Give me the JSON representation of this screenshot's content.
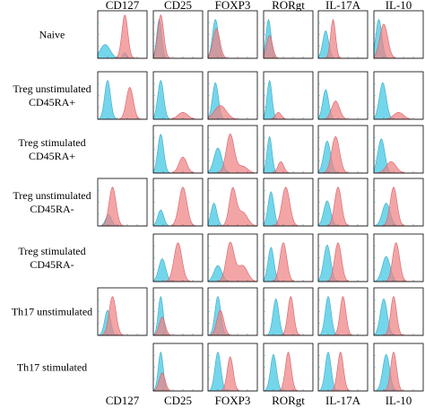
{
  "columns": [
    "CD127",
    "CD25",
    "FOXP3",
    "RORgt",
    "IL-17A",
    "IL-10"
  ],
  "rows": [
    [
      "Naive"
    ],
    [
      "Treg unstimulated",
      "CD45RA+"
    ],
    [
      "Treg stimulated",
      "CD45RA+"
    ],
    [
      "Treg unstimulated",
      "CD45RA-"
    ],
    [
      "Treg stimulated",
      "CD45RA-"
    ],
    [
      "Th17 unstimulated"
    ],
    [
      "Th17 stimulated"
    ]
  ],
  "colors": {
    "control_fill": "#5ccfe6",
    "control_stroke": "#3aa9c8",
    "stained_fill": "#ef8283",
    "stained_stroke": "#d8606a",
    "frame": "#000000"
  },
  "chart_data": {
    "type": "area",
    "kind": "flow-cytometry histogram grid",
    "present": [
      [
        1,
        1,
        1,
        1,
        1,
        1
      ],
      [
        1,
        1,
        1,
        1,
        1,
        1
      ],
      [
        0,
        1,
        1,
        1,
        1,
        1
      ],
      [
        1,
        1,
        1,
        1,
        1,
        1
      ],
      [
        0,
        1,
        1,
        1,
        1,
        1
      ],
      [
        1,
        1,
        1,
        1,
        1,
        1
      ],
      [
        0,
        1,
        1,
        1,
        1,
        1
      ]
    ],
    "histograms": [
      [
        {
          "blue": [
            [
              0.15,
              0.3,
              0.1
            ],
            [
              0.55,
              0.12,
              0.04
            ]
          ],
          "red": [
            [
              0.55,
              0.95,
              0.06
            ]
          ]
        },
        {
          "blue": [
            [
              0.12,
              0.85,
              0.05
            ]
          ],
          "red": [
            [
              0.15,
              0.95,
              0.06
            ]
          ]
        },
        {
          "blue": [
            [
              0.15,
              0.85,
              0.06
            ]
          ],
          "red": [
            [
              0.17,
              0.65,
              0.07
            ]
          ]
        },
        {
          "blue": [
            [
              0.1,
              0.85,
              0.05
            ]
          ],
          "red": [
            [
              0.12,
              0.5,
              0.06
            ]
          ]
        },
        {
          "blue": [
            [
              0.15,
              0.6,
              0.06
            ]
          ],
          "red": [
            [
              0.3,
              0.85,
              0.05
            ]
          ]
        },
        {
          "blue": [
            [
              0.1,
              0.85,
              0.06
            ]
          ],
          "red": [
            [
              0.2,
              0.75,
              0.08
            ]
          ]
        }
      ],
      [
        {
          "blue": [
            [
              0.2,
              0.85,
              0.06
            ]
          ],
          "red": [
            [
              0.65,
              0.7,
              0.07
            ]
          ]
        },
        {
          "blue": [
            [
              0.15,
              0.85,
              0.06
            ]
          ],
          "red": [
            [
              0.6,
              0.15,
              0.1
            ]
          ]
        },
        {
          "blue": [
            [
              0.15,
              0.8,
              0.06
            ]
          ],
          "red": [
            [
              0.25,
              0.3,
              0.12
            ]
          ]
        },
        {
          "blue": [
            [
              0.12,
              0.85,
              0.05
            ]
          ],
          "red": [
            [
              0.3,
              0.15,
              0.06
            ]
          ]
        },
        {
          "blue": [
            [
              0.15,
              0.65,
              0.06
            ]
          ],
          "red": [
            [
              0.35,
              0.4,
              0.08
            ]
          ]
        },
        {
          "blue": [
            [
              0.18,
              0.8,
              0.07
            ]
          ],
          "red": [
            [
              0.5,
              0.15,
              0.1
            ]
          ]
        }
      ],
      [
        null,
        {
          "blue": [
            [
              0.15,
              0.85,
              0.06
            ]
          ],
          "red": [
            [
              0.6,
              0.35,
              0.08
            ]
          ]
        },
        {
          "blue": [
            [
              0.2,
              0.55,
              0.08
            ]
          ],
          "red": [
            [
              0.45,
              0.85,
              0.08
            ],
            [
              0.7,
              0.15,
              0.1
            ]
          ]
        },
        {
          "blue": [
            [
              0.12,
              0.8,
              0.05
            ]
          ],
          "red": [
            [
              0.35,
              0.25,
              0.06
            ]
          ]
        },
        {
          "blue": [
            [
              0.18,
              0.7,
              0.07
            ]
          ],
          "red": [
            [
              0.35,
              0.8,
              0.08
            ]
          ]
        },
        {
          "blue": [
            [
              0.15,
              0.75,
              0.07
            ]
          ],
          "red": [
            [
              0.35,
              0.25,
              0.1
            ]
          ]
        }
      ],
      [
        {
          "blue": [
            [
              0.22,
              0.25,
              0.06
            ]
          ],
          "red": [
            [
              0.3,
              0.85,
              0.07
            ]
          ]
        },
        {
          "blue": [
            [
              0.15,
              0.35,
              0.06
            ]
          ],
          "red": [
            [
              0.6,
              0.85,
              0.08
            ]
          ]
        },
        {
          "blue": [
            [
              0.12,
              0.5,
              0.06
            ]
          ],
          "red": [
            [
              0.5,
              0.8,
              0.07
            ],
            [
              0.7,
              0.3,
              0.1
            ]
          ]
        },
        {
          "blue": [
            [
              0.15,
              0.75,
              0.06
            ]
          ],
          "red": [
            [
              0.45,
              0.85,
              0.08
            ]
          ]
        },
        {
          "blue": [
            [
              0.18,
              0.55,
              0.07
            ]
          ],
          "red": [
            [
              0.4,
              0.85,
              0.07
            ]
          ]
        },
        {
          "blue": [
            [
              0.25,
              0.5,
              0.08
            ]
          ],
          "red": [
            [
              0.4,
              0.85,
              0.07
            ]
          ]
        }
      ],
      [
        null,
        {
          "blue": [
            [
              0.18,
              0.5,
              0.07
            ]
          ],
          "red": [
            [
              0.5,
              0.85,
              0.08
            ]
          ]
        },
        {
          "blue": [
            [
              0.2,
              0.35,
              0.08
            ]
          ],
          "red": [
            [
              0.45,
              0.85,
              0.08
            ],
            [
              0.7,
              0.35,
              0.1
            ]
          ]
        },
        {
          "blue": [
            [
              0.15,
              0.75,
              0.06
            ]
          ],
          "red": [
            [
              0.4,
              0.85,
              0.07
            ]
          ]
        },
        {
          "blue": [
            [
              0.18,
              0.8,
              0.07
            ]
          ],
          "red": [
            [
              0.4,
              0.85,
              0.07
            ]
          ]
        },
        {
          "blue": [
            [
              0.25,
              0.55,
              0.08
            ]
          ],
          "red": [
            [
              0.45,
              0.85,
              0.07
            ]
          ]
        }
      ],
      [
        {
          "blue": [
            [
              0.2,
              0.55,
              0.06
            ]
          ],
          "red": [
            [
              0.3,
              0.85,
              0.07
            ]
          ]
        },
        {
          "blue": [
            [
              0.15,
              0.85,
              0.05
            ]
          ],
          "red": [
            [
              0.18,
              0.4,
              0.06
            ]
          ]
        },
        {
          "blue": [
            [
              0.2,
              0.85,
              0.06
            ]
          ],
          "red": [
            [
              0.25,
              0.55,
              0.07
            ]
          ]
        },
        {
          "blue": [
            [
              0.25,
              0.8,
              0.06
            ]
          ],
          "red": [
            [
              0.55,
              0.85,
              0.06
            ]
          ]
        },
        {
          "blue": [
            [
              0.2,
              0.85,
              0.06
            ]
          ],
          "red": [
            [
              0.5,
              0.85,
              0.06
            ]
          ]
        },
        {
          "blue": [
            [
              0.2,
              0.8,
              0.07
            ]
          ],
          "red": [
            [
              0.4,
              0.85,
              0.06
            ]
          ]
        }
      ],
      [
        null,
        {
          "blue": [
            [
              0.15,
              0.85,
              0.05
            ]
          ],
          "red": [
            [
              0.18,
              0.4,
              0.06
            ]
          ]
        },
        {
          "blue": [
            [
              0.2,
              0.85,
              0.06
            ]
          ],
          "red": [
            [
              0.45,
              0.75,
              0.06
            ]
          ]
        },
        {
          "blue": [
            [
              0.2,
              0.8,
              0.06
            ]
          ],
          "red": [
            [
              0.5,
              0.85,
              0.06
            ]
          ]
        },
        {
          "blue": [
            [
              0.2,
              0.85,
              0.06
            ]
          ],
          "red": [
            [
              0.45,
              0.85,
              0.06
            ]
          ]
        },
        {
          "blue": [
            [
              0.25,
              0.8,
              0.07
            ]
          ],
          "red": [
            [
              0.4,
              0.85,
              0.06
            ]
          ]
        }
      ]
    ]
  }
}
